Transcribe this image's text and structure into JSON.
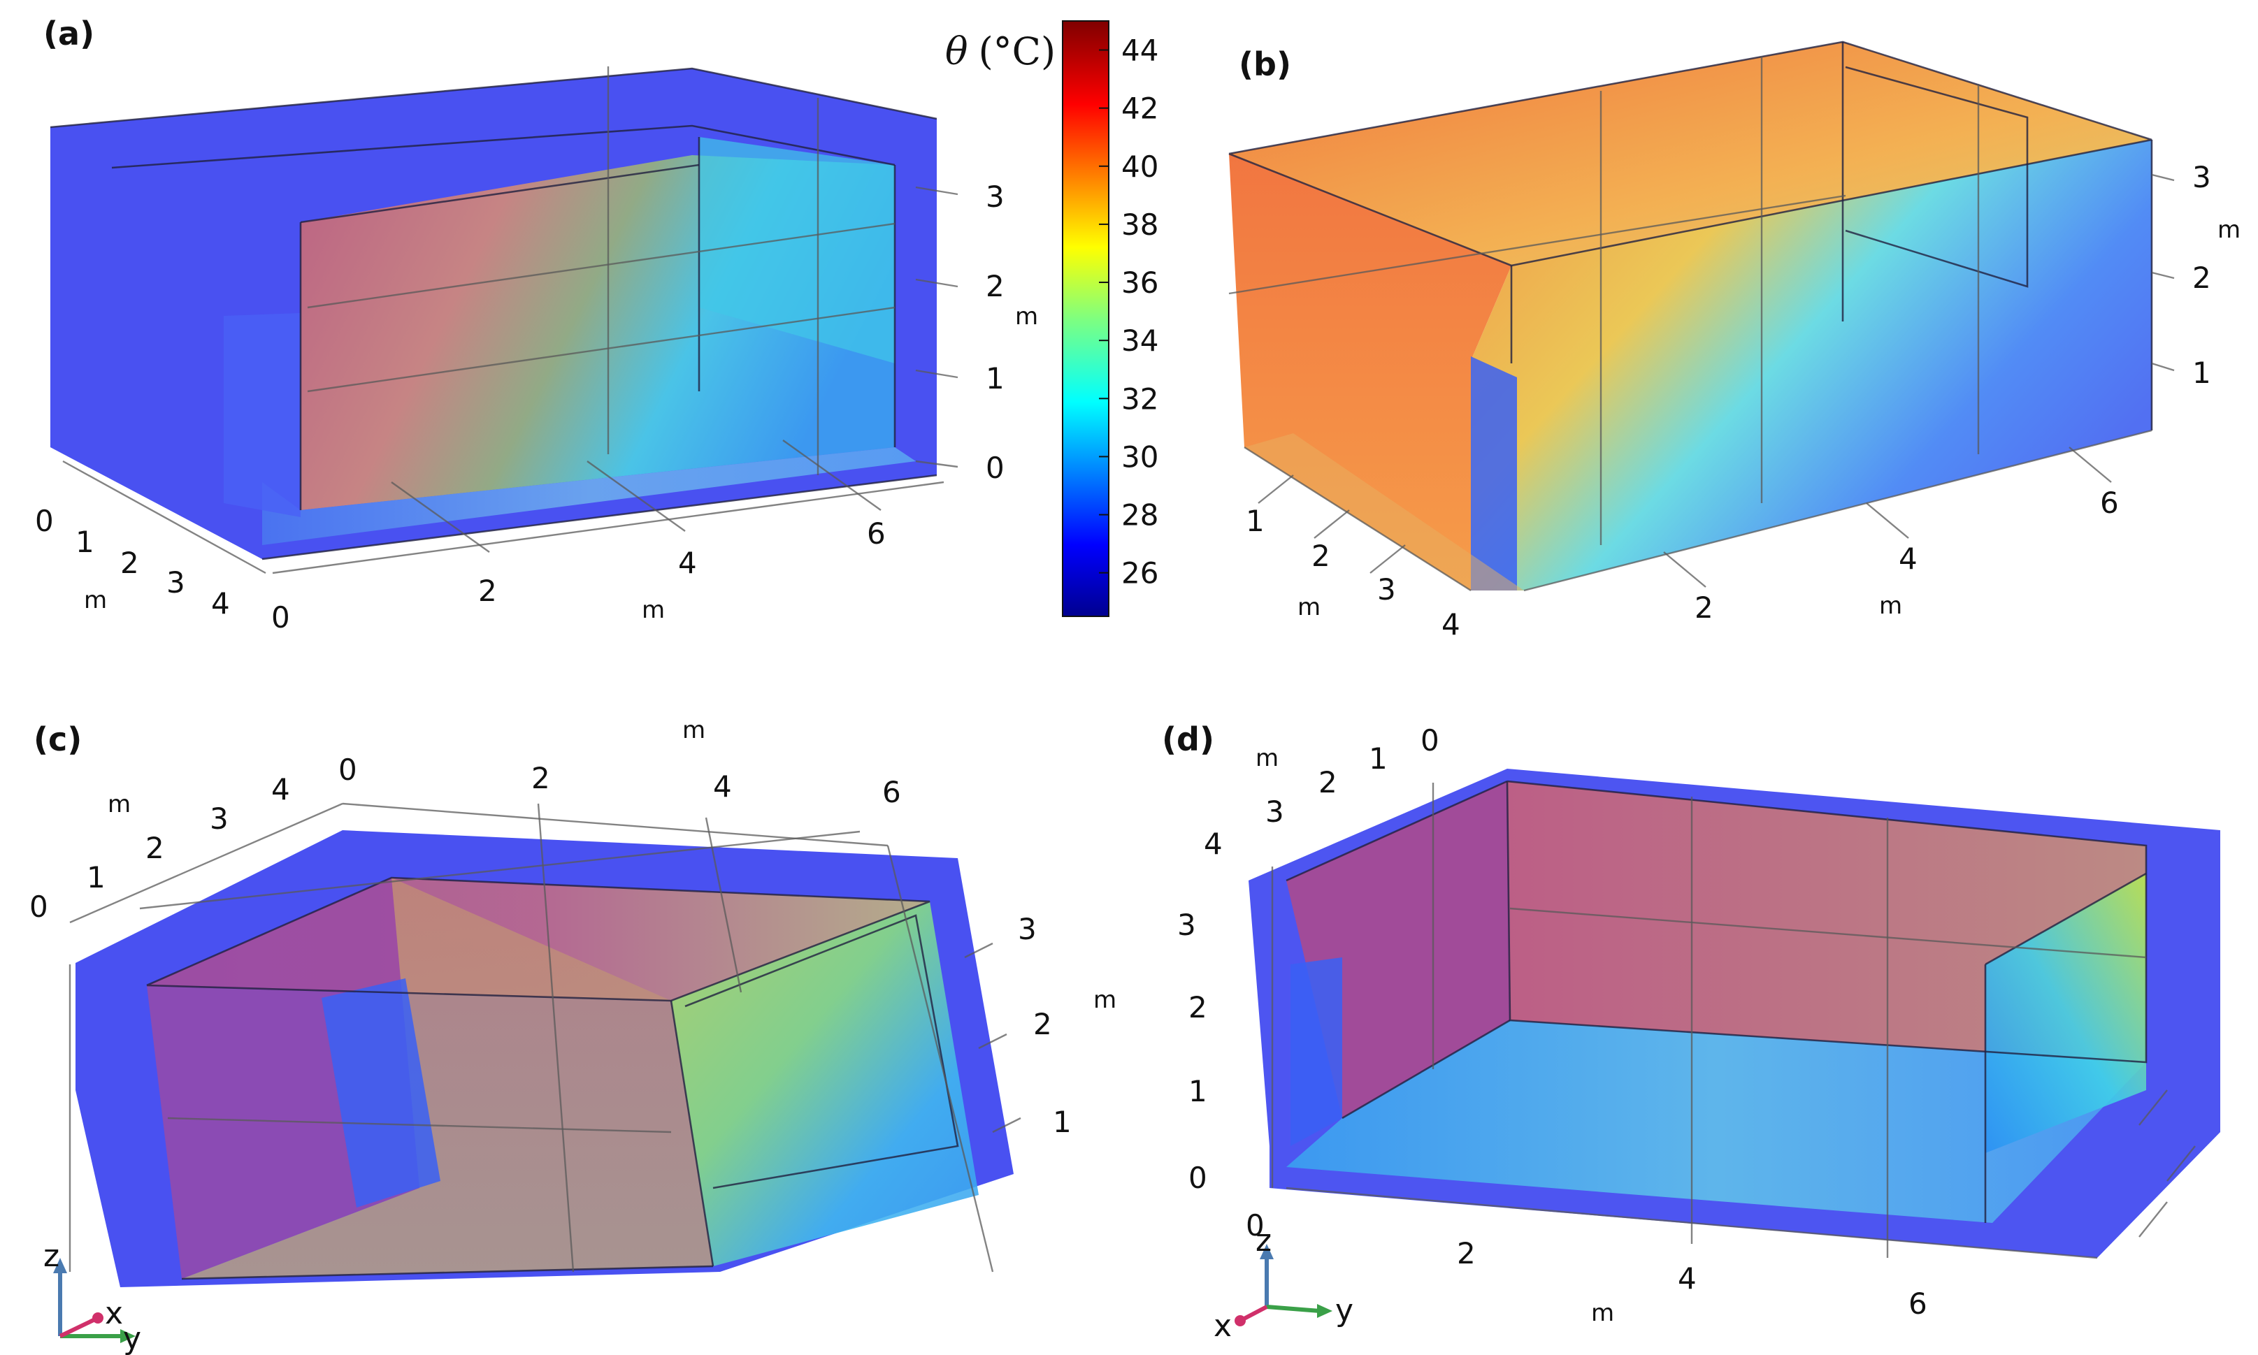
{
  "chart_data": [
    {
      "type": "volume",
      "panel": "(a)",
      "x_ticks": [
        "0",
        "2",
        "4",
        "6"
      ],
      "x_unit": "m",
      "y_ticks": [
        "0",
        "1",
        "2",
        "3",
        "4"
      ],
      "y_unit": "m",
      "z_ticks": [
        "0",
        "1",
        "2",
        "3"
      ],
      "z_unit": "m"
    },
    {
      "type": "volume",
      "panel": "(b)",
      "x_ticks": [
        "2",
        "4",
        "6"
      ],
      "x_unit": "m",
      "y_ticks": [
        "1",
        "2",
        "3",
        "4"
      ],
      "y_unit": "m",
      "z_ticks": [
        "1",
        "2",
        "3"
      ],
      "z_unit": "m"
    },
    {
      "type": "volume",
      "panel": "(c)",
      "x_ticks": [
        "0",
        "2",
        "4",
        "6"
      ],
      "x_unit": "m",
      "y_ticks": [
        "0",
        "1",
        "2",
        "3",
        "4"
      ],
      "y_unit": "m",
      "z_ticks": [
        "1",
        "2",
        "3"
      ],
      "z_unit": "m",
      "triad": [
        "z",
        "x",
        "y"
      ]
    },
    {
      "type": "volume",
      "panel": "(d)",
      "x_ticks": [
        "0",
        "2",
        "4",
        "6"
      ],
      "x_unit": "m",
      "y_ticks": [
        "0",
        "1",
        "2",
        "3",
        "4"
      ],
      "y_unit": "m",
      "z_ticks": [
        "0",
        "1",
        "2",
        "3",
        "4"
      ],
      "z_unit": "m",
      "triad": [
        "z",
        "x",
        "y"
      ]
    }
  ],
  "colorbar": {
    "symbol": "θ",
    "unit": "(°C)",
    "ticks": [
      "44",
      "42",
      "40",
      "38",
      "36",
      "34",
      "32",
      "30",
      "28",
      "26"
    ],
    "range": [
      24.5,
      45
    ],
    "colormap": "jet"
  },
  "colors": {
    "cold": "#1a1aff",
    "hot": "#ff4000",
    "warm_wall": "#c87a8a"
  }
}
